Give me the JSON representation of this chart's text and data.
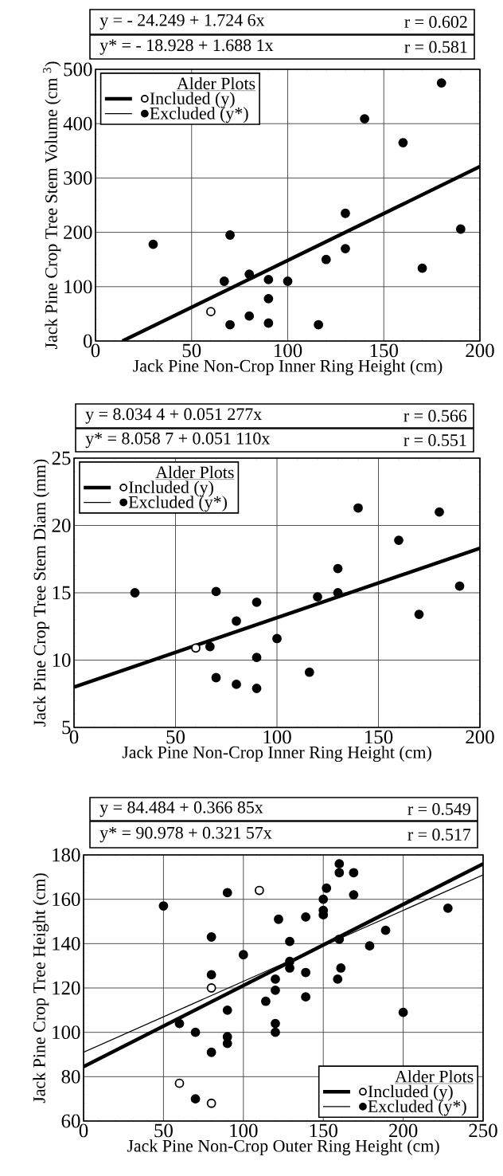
{
  "chart_data": [
    {
      "type": "scatter",
      "xlabel": "Jack Pine Non-Crop Inner Ring Height (cm)",
      "ylabel": "Jack Pine Crop Tree Stem Volume (cm $^{3}$)",
      "legend_title": "Alder Plots",
      "annotations": [
        "y = - 24.249 + 1.724 6x",
        "r = 0.602",
        "y* = - 18.928 + 1.688 1x",
        "r = 0.581"
      ],
      "xlim": [
        0,
        200
      ],
      "ylim": [
        0,
        500
      ],
      "xticks": [
        0,
        50,
        100,
        150,
        200
      ],
      "yticks": [
        0,
        100,
        200,
        300,
        400,
        500
      ],
      "grid": true,
      "legend": "top left",
      "series": [
        {
          "type": "line",
          "color": "#000000",
          "x": [
            14,
            200
          ],
          "values": [
            0,
            321
          ]
        },
        {
          "type": "scatter",
          "marker": "circle",
          "name": "Included (y)",
          "color": "#ffffff",
          "x": [
            60
          ],
          "values": [
            54
          ]
        },
        {
          "type": "scatter",
          "marker": "circle",
          "name": "Excluded (y*)",
          "color": "#000000",
          "x": [
            30,
            67,
            70,
            70,
            80,
            80,
            90,
            90,
            90,
            100,
            116,
            120,
            130,
            130,
            140,
            160,
            170,
            180,
            190
          ],
          "values": [
            178,
            110,
            195,
            30,
            123,
            46,
            113,
            78,
            33,
            110,
            30,
            150,
            235,
            170,
            409,
            365,
            134,
            475,
            206
          ]
        }
      ]
    },
    {
      "type": "scatter",
      "xlabel": "Jack Pine Non-Crop Inner Ring Height (cm)",
      "ylabel": "Jack Pine Crop Tree Stem Diam (mm)",
      "legend_title": "Alder Plots",
      "annotations": [
        "y = 8.034 4 + 0.051 277x",
        "r = 0.566",
        "y* = 8.058 7 + 0.051 110x",
        "r = 0.551"
      ],
      "xlim": [
        0,
        200
      ],
      "ylim": [
        5,
        25
      ],
      "xticks": [
        0,
        50,
        100,
        150,
        200
      ],
      "yticks": [
        5,
        10,
        15,
        20,
        25
      ],
      "grid": true,
      "legend": "top left",
      "series": [
        {
          "type": "line",
          "color": "#000000",
          "x": [
            0,
            200
          ],
          "values": [
            8.0,
            18.3
          ]
        },
        {
          "type": "scatter",
          "marker": "circle",
          "name": "Included (y)",
          "color": "#ffffff",
          "x": [
            60
          ],
          "values": [
            10.9
          ]
        },
        {
          "type": "scatter",
          "marker": "circle",
          "name": "Excluded (y*)",
          "color": "#000000",
          "x": [
            30,
            67,
            70,
            70,
            80,
            80,
            90,
            90,
            90,
            100,
            116,
            120,
            130,
            130,
            140,
            160,
            170,
            180,
            190
          ],
          "values": [
            15,
            11,
            15.1,
            8.7,
            12.9,
            8.2,
            14.3,
            10.2,
            7.9,
            11.6,
            9.1,
            14.7,
            16.8,
            15,
            21.3,
            18.9,
            13.4,
            21,
            15.5
          ]
        }
      ]
    },
    {
      "type": "scatter",
      "xlabel": "Jack Pine Non-Crop Outer Ring Height (cm)",
      "ylabel": "Jack Pine Crop Tree Height (cm)",
      "legend_title": "Alder Plots",
      "annotations": [
        "y = 84.484 + 0.366 85x",
        "r = 0.549",
        "y* = 90.978 + 0.321 57x",
        "r = 0.517"
      ],
      "xlim": [
        0,
        250
      ],
      "ylim": [
        60,
        180
      ],
      "xticks": [
        0,
        50,
        100,
        150,
        200,
        250
      ],
      "yticks": [
        60,
        80,
        100,
        120,
        140,
        160,
        180
      ],
      "grid": true,
      "legend": "bottom right",
      "series": [
        {
          "type": "line",
          "color": "#000000",
          "x": [
            0,
            250
          ],
          "values": [
            84.5,
            176
          ]
        },
        {
          "type": "line",
          "color": "#000000",
          "x": [
            0,
            250
          ],
          "values": [
            91,
            171
          ]
        },
        {
          "type": "scatter",
          "marker": "circle",
          "name": "Included (y)",
          "color": "#ffffff",
          "x": [
            110,
            80,
            60,
            80
          ],
          "values": [
            164,
            120,
            77,
            68
          ]
        },
        {
          "type": "scatter",
          "marker": "circle",
          "name": "Excluded (y*)",
          "color": "#000000",
          "x": [
            50,
            90,
            122,
            80,
            100,
            129,
            129,
            129,
            80,
            120,
            120,
            114,
            90,
            60,
            70,
            90,
            90,
            120,
            120,
            80,
            70,
            160,
            160,
            169,
            152,
            169,
            150,
            150,
            150,
            139,
            189,
            160,
            179,
            228,
            161,
            159,
            139,
            139,
            200
          ],
          "values": [
            157,
            163,
            151,
            143,
            135,
            141,
            132,
            129,
            126,
            124,
            119,
            114,
            110,
            104,
            100,
            98,
            95,
            104,
            100,
            91,
            70,
            176,
            172,
            172,
            165,
            162,
            160,
            155,
            153,
            152,
            146,
            142,
            139,
            156,
            129,
            124,
            127,
            116,
            109
          ]
        }
      ]
    }
  ]
}
